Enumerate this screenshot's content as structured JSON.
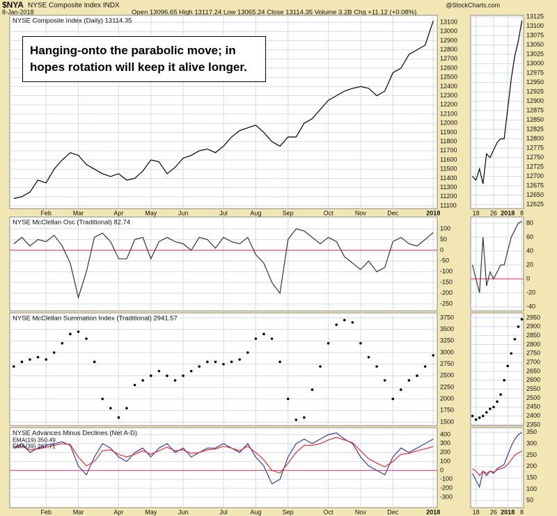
{
  "header": {
    "symbol": "$NYA",
    "name": "NYSE Composite Index INDX",
    "date": "8-Jan-2018",
    "quote": "Open 13096.65  High 13117.24  Low 13065.24  Close 13114.35  Volume 3.2B  Chg +11.12 (+0.08%)",
    "source": "@StockCharts.com"
  },
  "annotation": "Hanging-onto the parabolic move; in hopes rotation will keep it alive longer.",
  "chart_data": [
    {
      "type": "line",
      "title": "NYSE Composite Index (Daily) 13114.35",
      "categories": [
        null,
        null,
        null,
        null,
        "Feb",
        null,
        null,
        null,
        "Mar",
        null,
        null,
        null,
        null,
        "Apr",
        null,
        null,
        null,
        "May",
        null,
        null,
        null,
        "Jun",
        null,
        null,
        null,
        null,
        "Jul",
        null,
        null,
        null,
        "Aug",
        null,
        null,
        null,
        "Sep",
        null,
        null,
        null,
        null,
        "Oct",
        null,
        null,
        null,
        "Nov",
        null,
        null,
        null,
        "Dec",
        null,
        null,
        null,
        null,
        "2018"
      ],
      "values": [
        11180,
        11200,
        11250,
        11380,
        11350,
        11500,
        11600,
        11680,
        11650,
        11550,
        11500,
        11450,
        11420,
        11450,
        11380,
        11400,
        11480,
        11600,
        11580,
        11450,
        11520,
        11620,
        11650,
        11700,
        11720,
        11680,
        11750,
        11850,
        11920,
        11950,
        11980,
        11900,
        11800,
        11750,
        11850,
        11850,
        12000,
        12050,
        12150,
        12250,
        12300,
        12350,
        12380,
        12400,
        12380,
        12300,
        12350,
        12550,
        12600,
        12750,
        12800,
        12850,
        13114.35
      ],
      "color": "#000000",
      "ylim": [
        11070,
        13176
      ],
      "yticks": [
        11100,
        11200,
        11300,
        11400,
        11500,
        11600,
        11700,
        11800,
        11900,
        12000,
        12100,
        12200,
        12300,
        12400,
        12500,
        12600,
        12700,
        12800,
        12900,
        13000,
        13100
      ],
      "grid": true
    },
    {
      "type": "line",
      "title": "NYSE McClellan Osc (Traditional) 82.74",
      "values": [
        30,
        60,
        20,
        50,
        40,
        70,
        20,
        -60,
        -220,
        -100,
        60,
        80,
        40,
        -40,
        -40,
        50,
        60,
        -40,
        40,
        60,
        40,
        30,
        0,
        60,
        50,
        10,
        60,
        40,
        30,
        60,
        -20,
        -60,
        -150,
        -200,
        50,
        100,
        90,
        60,
        30,
        60,
        40,
        -30,
        -60,
        -90,
        -50,
        -100,
        -80,
        40,
        60,
        30,
        20,
        50,
        82.74
      ],
      "color": "#333333",
      "ylim": [
        -282,
        155
      ],
      "yticks": [
        -250,
        -200,
        -150,
        -100,
        -50,
        0,
        50,
        100
      ],
      "grid": true,
      "zero_line": true,
      "zero_line_color": "#e0506a"
    },
    {
      "type": "dot",
      "title": "NYSE McClellan Summation Index (Traditional) 2941.57",
      "values": [
        2700,
        2800,
        2850,
        2900,
        2850,
        3000,
        3200,
        3400,
        3450,
        3300,
        2800,
        2000,
        1800,
        1600,
        1800,
        2300,
        2400,
        2500,
        2600,
        2500,
        2400,
        2500,
        2600,
        2700,
        2800,
        2800,
        2750,
        2800,
        2850,
        3000,
        3300,
        3400,
        3300,
        2800,
        2000,
        1550,
        1600,
        2200,
        2700,
        3200,
        3600,
        3700,
        3650,
        3200,
        2900,
        2700,
        2400,
        2000,
        2200,
        2400,
        2500,
        2700,
        2941.57
      ],
      "color": "#000000",
      "ylim": [
        1425,
        3855
      ],
      "yticks": [
        1500,
        1750,
        2000,
        2250,
        2500,
        2750,
        3000,
        3250,
        3500,
        3750
      ],
      "grid": true
    },
    {
      "type": "line",
      "title": "NYSE Advances Minus Declines (Net A-D)",
      "categories": [
        null,
        null,
        null,
        null,
        "Feb",
        null,
        null,
        null,
        "Mar",
        null,
        null,
        null,
        null,
        "Apr",
        null,
        null,
        null,
        "May",
        null,
        null,
        null,
        "Jun",
        null,
        null,
        null,
        null,
        "Jul",
        null,
        null,
        null,
        "Aug",
        null,
        null,
        null,
        "Sep",
        null,
        null,
        null,
        null,
        "Oct",
        null,
        null,
        null,
        "Nov",
        null,
        null,
        null,
        "Dec",
        null,
        null,
        null,
        null,
        "2018"
      ],
      "series": [
        {
          "name": "EMA(19) 350.49",
          "color": "#3a3aa8",
          "values": [
            250,
            300,
            200,
            250,
            280,
            300,
            320,
            280,
            50,
            -50,
            150,
            300,
            250,
            150,
            100,
            200,
            250,
            150,
            250,
            300,
            200,
            250,
            150,
            200,
            250,
            250,
            300,
            250,
            200,
            300,
            150,
            50,
            -150,
            -100,
            150,
            300,
            350,
            300,
            350,
            400,
            420,
            350,
            300,
            150,
            50,
            0,
            -50,
            150,
            250,
            200,
            250,
            300,
            350.49
          ]
        },
        {
          "name": "EMA(39) 267.71",
          "color": "#e23030",
          "values": [
            250,
            270,
            230,
            240,
            260,
            280,
            300,
            290,
            150,
            50,
            100,
            220,
            230,
            180,
            150,
            180,
            220,
            180,
            220,
            260,
            220,
            230,
            190,
            200,
            230,
            240,
            270,
            250,
            220,
            270,
            200,
            120,
            0,
            -30,
            80,
            200,
            280,
            280,
            300,
            340,
            370,
            340,
            310,
            220,
            130,
            80,
            40,
            100,
            180,
            190,
            220,
            240,
            267.71
          ]
        }
      ],
      "ylim": [
        -417,
        478
      ],
      "yticks": [
        -300,
        -200,
        -100,
        0,
        100,
        200,
        300,
        400
      ],
      "grid": true,
      "zero_line": true,
      "zero_line_color": "#e0506a"
    },
    {
      "type": "line",
      "categories": [
        null,
        "18",
        null,
        null,
        null,
        null,
        "26",
        null,
        null,
        null,
        "2018",
        null,
        null,
        null,
        "8"
      ],
      "values": [
        12700,
        12690,
        12720,
        12680,
        12760,
        12750,
        12770,
        12790,
        12800,
        12800,
        12880,
        12960,
        13020,
        13060,
        13114.35
      ],
      "color": "#000000",
      "ylim": [
        12614,
        13129
      ],
      "yticks": [
        12625,
        12650,
        12675,
        12700,
        12725,
        12750,
        12775,
        12800,
        12825,
        12850,
        12875,
        12900,
        12925,
        12950,
        12975,
        13000,
        13025,
        13050,
        13075,
        13100,
        13125
      ],
      "grid": true
    },
    {
      "type": "line",
      "values": [
        20,
        0,
        -20,
        60,
        -10,
        10,
        0,
        10,
        20,
        20,
        40,
        60,
        70,
        80,
        82.74
      ],
      "color": "#333333",
      "ylim": [
        -46,
        89
      ],
      "yticks": [
        -40,
        -20,
        0,
        20,
        40,
        60,
        80
      ],
      "grid": true,
      "zero_line": true,
      "zero_line_color": "#e0506a"
    },
    {
      "type": "dot",
      "values": [
        2400,
        2380,
        2390,
        2400,
        2420,
        2440,
        2450,
        2480,
        2520,
        2600,
        2680,
        2750,
        2830,
        2900,
        2941.57
      ],
      "color": "#000000",
      "ylim": [
        2346,
        2977
      ],
      "yticks": [
        2350,
        2400,
        2450,
        2500,
        2550,
        2600,
        2650,
        2700,
        2750,
        2800,
        2850,
        2900,
        2950
      ],
      "grid": true
    },
    {
      "type": "line",
      "categories": [
        null,
        "18",
        null,
        null,
        null,
        null,
        "26",
        null,
        null,
        null,
        "2018",
        null,
        null,
        null,
        "8"
      ],
      "series": [
        {
          "color": "#3a3aa8",
          "values": [
            170,
            140,
            110,
            180,
            160,
            180,
            170,
            190,
            200,
            210,
            250,
            290,
            320,
            340,
            350.49
          ]
        },
        {
          "color": "#e23030",
          "values": [
            190,
            180,
            160,
            180,
            170,
            180,
            175,
            185,
            190,
            195,
            210,
            230,
            250,
            260,
            267.71
          ]
        }
      ],
      "ylim": [
        19,
        371
      ],
      "yticks": [
        50,
        100,
        150,
        200,
        250,
        300,
        350
      ],
      "grid": true
    }
  ]
}
